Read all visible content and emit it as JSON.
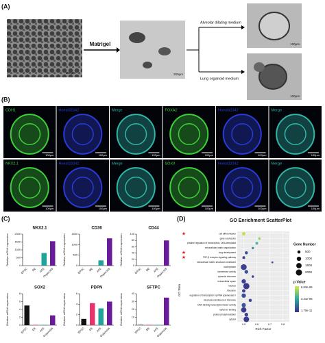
{
  "panel_a": {
    "label": "(A)",
    "step": "Matrigel",
    "branch_top": "Alveolar dilating medium",
    "branch_bottom": "Lung organoid medium",
    "scale_bars": [
      "200μm",
      "200μm",
      "100μm",
      "100μm"
    ]
  },
  "panel_b": {
    "label": "(B)",
    "rows": [
      [
        "CDH1",
        "Hoest33342",
        "Merge",
        "FOXA2",
        "Hoest33342",
        "Merge"
      ],
      [
        "NKX2.1",
        "Hoest33342",
        "Merge",
        "SOX9",
        "Hoest33342",
        "Merge"
      ]
    ],
    "scale_bar": "100μm"
  },
  "panel_c": {
    "label": "(C)"
  },
  "panel_d": {
    "label": "(D)"
  },
  "chart_data": [
    {
      "type": "bar",
      "title": "NKX2.1",
      "categories": [
        "EPSC",
        "DE",
        "AFE",
        "Organoids"
      ],
      "values": [
        0,
        0,
        800,
        1550
      ],
      "colors": [
        "#111111",
        "#e8336e",
        "#1fa39a",
        "#6a1b9a"
      ],
      "ylabel": "Relative mRNA expression",
      "ylim": [
        0,
        2000
      ],
      "yticks": [
        0,
        500,
        1000,
        1500,
        2000
      ]
    },
    {
      "type": "bar",
      "title": "CD36",
      "categories": [
        "EPSC",
        "DE",
        "AFE",
        "Organoids"
      ],
      "values": [
        0,
        0,
        250,
        1300
      ],
      "colors": [
        "#111111",
        "#e8336e",
        "#1fa39a",
        "#6a1b9a"
      ],
      "ylabel": "Relative mRNA expression",
      "ylim": [
        0,
        1500
      ],
      "yticks": [
        0,
        500,
        1000,
        1500
      ]
    },
    {
      "type": "bar",
      "title": "CD44",
      "categories": [
        "EPSC",
        "DE",
        "AFE",
        "Organoids"
      ],
      "values": [
        0,
        0,
        1,
        80
      ],
      "colors": [
        "#111111",
        "#e8336e",
        "#1fa39a",
        "#6a1b9a"
      ],
      "ylabel": "Relative mRNA expression",
      "ylim": [
        0,
        100
      ],
      "yticks": [
        0,
        20,
        40,
        60,
        80,
        100
      ]
    },
    {
      "type": "bar",
      "title": "SOX2",
      "categories": [
        "EPSC",
        "DE",
        "AFE",
        "Organoids"
      ],
      "values": [
        5,
        0.1,
        0.1,
        2.5
      ],
      "colors": [
        "#111111",
        "#e8336e",
        "#1fa39a",
        "#6a1b9a"
      ],
      "ylabel": "Relative mRNA expression",
      "ylim": [
        0,
        8
      ],
      "yticks": [
        0,
        2,
        4,
        6,
        8
      ]
    },
    {
      "type": "bar",
      "title": "PDPN",
      "categories": [
        "EPSC",
        "DE",
        "AFE",
        "Organoids"
      ],
      "values": [
        1.2,
        4.2,
        3.2,
        4.5
      ],
      "colors": [
        "#111111",
        "#e8336e",
        "#1fa39a",
        "#6a1b9a"
      ],
      "ylabel": "Relative mRNA expression",
      "ylim": [
        0,
        6
      ],
      "yticks": [
        0,
        2,
        4,
        6
      ]
    },
    {
      "type": "bar",
      "title": "SFTPC",
      "categories": [
        "EPSC",
        "DE",
        "AFE",
        "Organoids"
      ],
      "values": [
        0.5,
        0.5,
        0.5,
        35
      ],
      "colors": [
        "#111111",
        "#e8336e",
        "#1fa39a",
        "#6a1b9a"
      ],
      "ylabel": "Relative mRNA expression",
      "ylim": [
        0,
        40
      ],
      "yticks": [
        0,
        10,
        20,
        30,
        40
      ]
    },
    {
      "type": "scatter",
      "title": "GO Enrichment ScatterPlot",
      "xlabel": "Rich Factor",
      "ylabel": "GO Term",
      "categories": [
        "cell differentiation",
        "gene expression",
        "positive regulation of transcription, DNA-templated",
        "extracellular matrix organization",
        "lung development",
        "TGF-β receptor signaling pathway",
        "extracellular matrix structural constituent",
        "nucleoplasm",
        "transferase activity",
        "cytosolic ribosome",
        "extracellular space",
        "nucleus",
        "ribosome",
        "regulation of transcription by RNA polymerase II",
        "structural constituent of ribosome",
        "DNA-binding transcription factor activity",
        "metal ion binding",
        "protein phosphorylation",
        "cytosol"
      ],
      "x": [
        0.5,
        0.62,
        0.6,
        0.57,
        0.52,
        0.5,
        0.72,
        0.5,
        0.52,
        0.57,
        0.5,
        0.52,
        0.5,
        0.5,
        0.55,
        0.5,
        0.5,
        0.52,
        0.52
      ],
      "sizes": [
        600,
        300,
        400,
        300,
        500,
        400,
        200,
        1800,
        700,
        300,
        1000,
        2000,
        600,
        1000,
        500,
        900,
        1500,
        700,
        1600
      ],
      "colors": [
        "#c7e04a",
        "#8fd35a",
        "#4fb3a8",
        "#3a8fa5",
        "#3b4f9a",
        "#3f3f94",
        "#3b4f9a",
        "#3f3f94",
        "#3b4f9a",
        "#3f3f94",
        "#3f3f94",
        "#3b3a8c",
        "#3f3f94",
        "#3b4f9a",
        "#3f3f94",
        "#3b4f9a",
        "#3b3a8c",
        "#3f3f94",
        "#3b3a8c"
      ],
      "xlim": [
        0.45,
        0.85
      ],
      "xticks": [
        0.5,
        0.6,
        0.7,
        0.8
      ],
      "size_legend": {
        "title": "Gene Number",
        "values": [
          500,
          1000,
          1500,
          2000
        ]
      },
      "color_legend": {
        "title": "p Value",
        "labels": [
          "6.83e-06",
          "3.41e-06",
          "1.70e-11"
        ],
        "colors": [
          "#d8e84a",
          "#2fa6a0",
          "#3b2f88"
        ]
      }
    }
  ]
}
